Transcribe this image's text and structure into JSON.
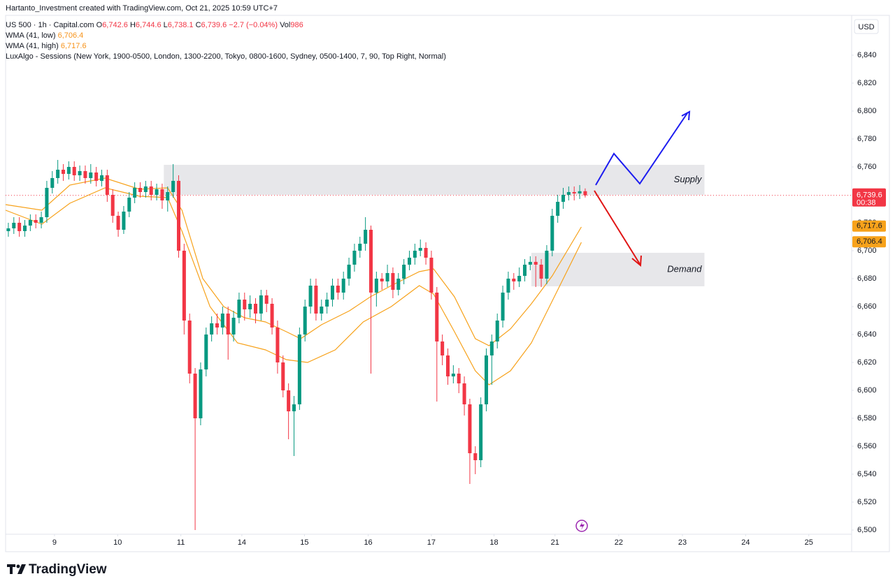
{
  "header": {
    "credit": "Hartanto_Investment created with TradingView.com, Oct 21, 2025 10:59 UTC+7",
    "symbol": "US 500 · 1h · Capital.com",
    "ohlc": [
      {
        "label": "O",
        "value": "6,742.6"
      },
      {
        "label": "H",
        "value": "6,744.6"
      },
      {
        "label": "L",
        "value": "6,738.1"
      },
      {
        "label": "C",
        "value": "6,739.6"
      }
    ],
    "change": "−2.7 (−0.04%)",
    "volume": {
      "label": "Vol",
      "value": "986"
    },
    "indicator": "LuxAlgo - Sessions (New York, 1900-0500, London, 1300-2200, Tokyo, 0800-1600, Sydney, 0500-1400, 7, 90, Top Right, Normal)"
  },
  "logo": "TradingView",
  "chart_data": {
    "type": "candlestick",
    "currency": "USD",
    "up_color": "#089981",
    "down_color": "#f23645",
    "xlim": [
      0,
      154
    ],
    "ylim": [
      6497,
      6868.5
    ],
    "xticks": [
      {
        "value": 8.9,
        "label": "9"
      },
      {
        "value": 20.4,
        "label": "10"
      },
      {
        "value": 31.9,
        "label": "11"
      },
      {
        "value": 43.0,
        "label": "14"
      },
      {
        "value": 54.4,
        "label": "15"
      },
      {
        "value": 66.0,
        "label": "16"
      },
      {
        "value": 77.5,
        "label": "17"
      },
      {
        "value": 88.9,
        "label": "18"
      },
      {
        "value": 100.0,
        "label": "21"
      },
      {
        "value": 111.6,
        "label": "22"
      },
      {
        "value": 123.2,
        "label": "23"
      },
      {
        "value": 134.7,
        "label": "24"
      },
      {
        "value": 146.2,
        "label": "25"
      }
    ],
    "yticks": [
      {
        "value": 6500,
        "label": "6,500"
      },
      {
        "value": 6520,
        "label": "6,520"
      },
      {
        "value": 6540,
        "label": "6,540"
      },
      {
        "value": 6560,
        "label": "6,560"
      },
      {
        "value": 6580,
        "label": "6,580"
      },
      {
        "value": 6600,
        "label": "6,600"
      },
      {
        "value": 6620,
        "label": "6,620"
      },
      {
        "value": 6640,
        "label": "6,640"
      },
      {
        "value": 6660,
        "label": "6,660"
      },
      {
        "value": 6680,
        "label": "6,680"
      },
      {
        "value": 6700,
        "label": "6,700"
      },
      {
        "value": 6720,
        "label": "6,720"
      },
      {
        "value": 6740,
        "label": "6,740"
      },
      {
        "value": 6760,
        "label": "6,760"
      },
      {
        "value": 6780,
        "label": "6,780"
      },
      {
        "value": 6800,
        "label": "6,800"
      },
      {
        "value": 6820,
        "label": "6,820"
      },
      {
        "value": 6840,
        "label": "6,840"
      }
    ],
    "grid": false,
    "candles": {
      "open": [
        6714,
        6716,
        6720,
        6714,
        6718,
        6722,
        6720,
        6724,
        6745,
        6752,
        6758,
        6755,
        6760,
        6754,
        6757,
        6752,
        6756,
        6750,
        6754,
        6740,
        6725,
        6715,
        6728,
        6738,
        6745,
        6742,
        6746,
        6740,
        6744,
        6736,
        6742,
        6750,
        6700,
        6650,
        6612,
        6580,
        6615,
        6640,
        6648,
        6645,
        6655,
        6640,
        6652,
        6665,
        6658,
        6662,
        6655,
        6668,
        6662,
        6645,
        6620,
        6600,
        6585,
        6590,
        6640,
        6660,
        6675,
        6655,
        6660,
        6665,
        6675,
        6670,
        6680,
        6690,
        6700,
        6705,
        6715,
        6670,
        6680,
        6678,
        6684,
        6672,
        6680,
        6690,
        6695,
        6700,
        6702,
        6695,
        6670,
        6635,
        6625,
        6610,
        6612,
        6605,
        6590,
        6555,
        6550,
        6590,
        6625,
        6635,
        6650,
        6670,
        6680,
        6678,
        6682,
        6690,
        6692,
        6690,
        6680,
        6700,
        6725,
        6735,
        6740,
        6742,
        6741,
        6742.6
      ],
      "high": [
        6720,
        6724,
        6724,
        6722,
        6726,
        6726,
        6728,
        6750,
        6757,
        6765,
        6762,
        6764,
        6764,
        6761,
        6761,
        6762,
        6760,
        6758,
        6758,
        6744,
        6728,
        6732,
        6742,
        6749,
        6749,
        6750,
        6750,
        6748,
        6748,
        6746,
        6762,
        6754,
        6705,
        6655,
        6616,
        6620,
        6645,
        6653,
        6655,
        6660,
        6660,
        6657,
        6670,
        6670,
        6668,
        6666,
        6672,
        6672,
        6666,
        6650,
        6625,
        6605,
        6596,
        6645,
        6665,
        6680,
        6680,
        6665,
        6670,
        6680,
        6680,
        6685,
        6695,
        6705,
        6710,
        6724,
        6718,
        6685,
        6684,
        6690,
        6688,
        6684,
        6694,
        6700,
        6705,
        6708,
        6706,
        6700,
        6674,
        6640,
        6630,
        6618,
        6616,
        6610,
        6594,
        6560,
        6595,
        6630,
        6640,
        6655,
        6675,
        6685,
        6684,
        6688,
        6694,
        6696,
        6696,
        6694,
        6704,
        6730,
        6740,
        6745,
        6746,
        6746,
        6747,
        6744.6
      ],
      "low": [
        6710,
        6712,
        6710,
        6710,
        6714,
        6716,
        6716,
        6720,
        6741,
        6748,
        6750,
        6751,
        6750,
        6750,
        6748,
        6748,
        6746,
        6746,
        6735,
        6720,
        6710,
        6712,
        6724,
        6734,
        6738,
        6738,
        6736,
        6736,
        6730,
        6728,
        6738,
        6695,
        6640,
        6605,
        6500,
        6575,
        6610,
        6635,
        6640,
        6640,
        6622,
        6635,
        6648,
        6650,
        6652,
        6648,
        6650,
        6656,
        6640,
        6612,
        6595,
        6565,
        6553,
        6586,
        6635,
        6655,
        6650,
        6650,
        6655,
        6660,
        6665,
        6665,
        6675,
        6685,
        6695,
        6700,
        6612,
        6660,
        6672,
        6674,
        6666,
        6668,
        6676,
        6686,
        6690,
        6696,
        6690,
        6665,
        6592,
        6618,
        6604,
        6605,
        6598,
        6582,
        6533,
        6540,
        6545,
        6585,
        6604,
        6630,
        6645,
        6665,
        6672,
        6674,
        6678,
        6686,
        6674,
        6674,
        6676,
        6696,
        6720,
        6730,
        6736,
        6736,
        6737,
        6738.1
      ],
      "close": [
        6716,
        6720,
        6714,
        6718,
        6722,
        6720,
        6724,
        6745,
        6752,
        6758,
        6755,
        6760,
        6754,
        6757,
        6752,
        6756,
        6750,
        6754,
        6740,
        6725,
        6715,
        6728,
        6738,
        6745,
        6742,
        6746,
        6740,
        6744,
        6736,
        6742,
        6750,
        6700,
        6650,
        6612,
        6580,
        6615,
        6640,
        6648,
        6645,
        6655,
        6640,
        6652,
        6665,
        6658,
        6662,
        6655,
        6668,
        6662,
        6645,
        6620,
        6600,
        6585,
        6590,
        6640,
        6660,
        6675,
        6655,
        6660,
        6665,
        6675,
        6670,
        6680,
        6690,
        6700,
        6705,
        6715,
        6670,
        6680,
        6678,
        6684,
        6672,
        6680,
        6690,
        6695,
        6700,
        6702,
        6695,
        6670,
        6635,
        6625,
        6610,
        6612,
        6605,
        6590,
        6555,
        6550,
        6590,
        6625,
        6635,
        6650,
        6670,
        6680,
        6678,
        6682,
        6690,
        6692,
        6690,
        6680,
        6700,
        6725,
        6735,
        6740,
        6742,
        6741,
        6742.6,
        6739.6
      ]
    },
    "last_price": {
      "value": 6739.6,
      "label": "6,739.6",
      "countdown": "00:38",
      "color": "#f23645"
    },
    "series": [
      {
        "name": "WMA (41, low)",
        "color": "#f7a21b",
        "last": {
          "value": 6706.4,
          "label": "6,706.4"
        },
        "x": [
          0,
          6.6,
          11.7,
          18.1,
          24.4,
          29.5,
          32.1,
          37.2,
          42.2,
          47.3,
          51.1,
          54.96,
          60.0,
          65.1,
          70.2,
          75.3,
          77.9,
          81.7,
          85.5,
          88.0,
          91.9,
          95.7,
          99.5,
          104.8
        ],
        "values": [
          6729,
          6719,
          6734,
          6745,
          6739,
          6738,
          6714,
          6660,
          6634,
          6629,
          6622,
          6620,
          6629,
          6649,
          6660,
          6675,
          6669,
          6642,
          6614,
          6604,
          6614,
          6634,
          6664,
          6706
        ]
      },
      {
        "name": "WMA (41, high)",
        "color": "#f7a21b",
        "last": {
          "value": 6717.6,
          "label": "6,717.6"
        },
        "x": [
          0,
          6.6,
          11.7,
          18.1,
          24.4,
          29.5,
          32.1,
          35.9,
          39.7,
          43.5,
          47.3,
          51.1,
          53.7,
          57.5,
          62.6,
          66.4,
          70.2,
          75.3,
          77.9,
          81.7,
          85.5,
          88.0,
          91.9,
          95.7,
          99.5,
          104.8
        ],
        "values": [
          6733,
          6729,
          6747,
          6752,
          6744,
          6745,
          6729,
          6680,
          6660,
          6652,
          6649,
          6642,
          6637,
          6647,
          6657,
          6667,
          6675,
          6685,
          6687,
          6667,
          6637,
          6632,
          6644,
          6662,
          6682,
          6717
        ]
      }
    ],
    "zones": [
      {
        "name": "Supply",
        "xlim": [
          28.8,
          127.2
        ],
        "ylim": [
          6740,
          6761.5
        ]
      },
      {
        "name": "Demand",
        "xlim": [
          95.7,
          127.2
        ],
        "ylim": [
          6674.5,
          6698.5
        ]
      }
    ]
  }
}
